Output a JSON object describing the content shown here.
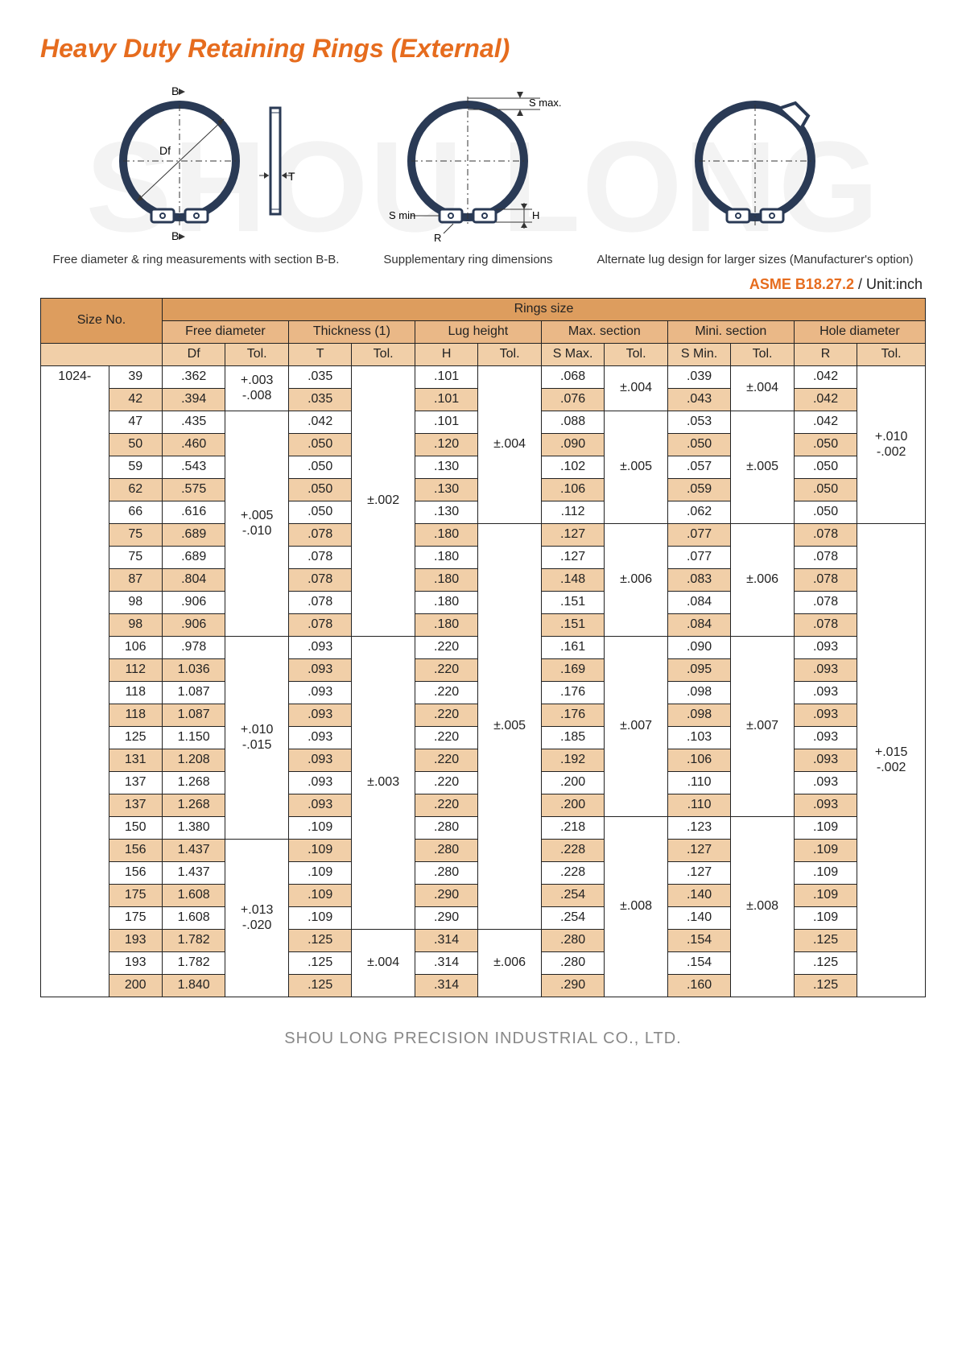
{
  "title": "Heavy Duty Retaining Rings\n(External)",
  "watermark": "SHOU LONG",
  "standard": "ASME B18.27.2",
  "unit_label": " / Unit:inch",
  "footer": "SHOU LONG PRECISION INDUSTRIAL CO., LTD.",
  "diagrams": [
    {
      "caption": "Free diameter & ring measurements\nwith section B-B.",
      "labels": [
        "B",
        "Df",
        "T",
        "B"
      ]
    },
    {
      "caption": "Supplementary\nring dimensions",
      "labels": [
        "S max.",
        "S min",
        "R",
        "H"
      ]
    },
    {
      "caption": "Alternate lug design\nfor larger sizes\n(Manufacturer's option)"
    }
  ],
  "table": {
    "header": {
      "size_no": "Size No.",
      "rings_size": "Rings size",
      "groups": [
        "Free diameter",
        "Thickness (1)",
        "Lug height",
        "Max. section",
        "Mini. section",
        "Hole diameter"
      ],
      "cols": [
        "Df",
        "Tol.",
        "T",
        "Tol.",
        "H",
        "Tol.",
        "S Max.",
        "Tol.",
        "S Min.",
        "Tol.",
        "R",
        "Tol."
      ]
    },
    "series_prefix": "1024-",
    "rows": [
      {
        "n": "39",
        "df": ".362",
        "t": ".035",
        "h": ".101",
        "smax": ".068",
        "smin": ".039",
        "r": ".042"
      },
      {
        "n": "42",
        "df": ".394",
        "t": ".035",
        "h": ".101",
        "smax": ".076",
        "smin": ".043",
        "r": ".042",
        "shade": true
      },
      {
        "n": "47",
        "df": ".435",
        "t": ".042",
        "h": ".101",
        "smax": ".088",
        "smin": ".053",
        "r": ".042"
      },
      {
        "n": "50",
        "df": ".460",
        "t": ".050",
        "h": ".120",
        "smax": ".090",
        "smin": ".050",
        "r": ".050",
        "shade": true
      },
      {
        "n": "59",
        "df": ".543",
        "t": ".050",
        "h": ".130",
        "smax": ".102",
        "smin": ".057",
        "r": ".050"
      },
      {
        "n": "62",
        "df": ".575",
        "t": ".050",
        "h": ".130",
        "smax": ".106",
        "smin": ".059",
        "r": ".050",
        "shade": true
      },
      {
        "n": "66",
        "df": ".616",
        "t": ".050",
        "h": ".130",
        "smax": ".112",
        "smin": ".062",
        "r": ".050"
      },
      {
        "n": "75",
        "df": ".689",
        "t": ".078",
        "h": ".180",
        "smax": ".127",
        "smin": ".077",
        "r": ".078",
        "shade": true
      },
      {
        "n": "75",
        "df": ".689",
        "t": ".078",
        "h": ".180",
        "smax": ".127",
        "smin": ".077",
        "r": ".078"
      },
      {
        "n": "87",
        "df": ".804",
        "t": ".078",
        "h": ".180",
        "smax": ".148",
        "smin": ".083",
        "r": ".078",
        "shade": true
      },
      {
        "n": "98",
        "df": ".906",
        "t": ".078",
        "h": ".180",
        "smax": ".151",
        "smin": ".084",
        "r": ".078"
      },
      {
        "n": "98",
        "df": ".906",
        "t": ".078",
        "h": ".180",
        "smax": ".151",
        "smin": ".084",
        "r": ".078",
        "shade": true
      },
      {
        "n": "106",
        "df": ".978",
        "t": ".093",
        "h": ".220",
        "smax": ".161",
        "smin": ".090",
        "r": ".093"
      },
      {
        "n": "112",
        "df": "1.036",
        "t": ".093",
        "h": ".220",
        "smax": ".169",
        "smin": ".095",
        "r": ".093",
        "shade": true
      },
      {
        "n": "118",
        "df": "1.087",
        "t": ".093",
        "h": ".220",
        "smax": ".176",
        "smin": ".098",
        "r": ".093"
      },
      {
        "n": "118",
        "df": "1.087",
        "t": ".093",
        "h": ".220",
        "smax": ".176",
        "smin": ".098",
        "r": ".093",
        "shade": true
      },
      {
        "n": "125",
        "df": "1.150",
        "t": ".093",
        "h": ".220",
        "smax": ".185",
        "smin": ".103",
        "r": ".093"
      },
      {
        "n": "131",
        "df": "1.208",
        "t": ".093",
        "h": ".220",
        "smax": ".192",
        "smin": ".106",
        "r": ".093",
        "shade": true
      },
      {
        "n": "137",
        "df": "1.268",
        "t": ".093",
        "h": ".220",
        "smax": ".200",
        "smin": ".110",
        "r": ".093"
      },
      {
        "n": "137",
        "df": "1.268",
        "t": ".093",
        "h": ".220",
        "smax": ".200",
        "smin": ".110",
        "r": ".093",
        "shade": true
      },
      {
        "n": "150",
        "df": "1.380",
        "t": ".109",
        "h": ".280",
        "smax": ".218",
        "smin": ".123",
        "r": ".109"
      },
      {
        "n": "156",
        "df": "1.437",
        "t": ".109",
        "h": ".280",
        "smax": ".228",
        "smin": ".127",
        "r": ".109",
        "shade": true
      },
      {
        "n": "156",
        "df": "1.437",
        "t": ".109",
        "h": ".280",
        "smax": ".228",
        "smin": ".127",
        "r": ".109"
      },
      {
        "n": "175",
        "df": "1.608",
        "t": ".109",
        "h": ".290",
        "smax": ".254",
        "smin": ".140",
        "r": ".109",
        "shade": true
      },
      {
        "n": "175",
        "df": "1.608",
        "t": ".109",
        "h": ".290",
        "smax": ".254",
        "smin": ".140",
        "r": ".109"
      },
      {
        "n": "193",
        "df": "1.782",
        "t": ".125",
        "h": ".314",
        "smax": ".280",
        "smin": ".154",
        "r": ".125",
        "shade": true
      },
      {
        "n": "193",
        "df": "1.782",
        "t": ".125",
        "h": ".314",
        "smax": ".280",
        "smin": ".154",
        "r": ".125"
      },
      {
        "n": "200",
        "df": "1.840",
        "t": ".125",
        "h": ".314",
        "smax": ".290",
        "smin": ".160",
        "r": ".125",
        "shade": true
      }
    ],
    "tol_spans": {
      "df": [
        {
          "start": 0,
          "len": 2,
          "text": "+.003\n-.008"
        },
        {
          "start": 2,
          "len": 10,
          "text": "+.005\n-.010"
        },
        {
          "start": 12,
          "len": 9,
          "text": "+.010\n-.015"
        },
        {
          "start": 21,
          "len": 7,
          "text": "+.013\n-.020"
        }
      ],
      "t": [
        {
          "start": 0,
          "len": 12,
          "text": "±.002"
        },
        {
          "start": 12,
          "len": 13,
          "text": "±.003"
        },
        {
          "start": 25,
          "len": 3,
          "text": "±.004"
        }
      ],
      "h": [
        {
          "start": 0,
          "len": 7,
          "text": "±.004"
        },
        {
          "start": 7,
          "len": 18,
          "text": "±.005"
        },
        {
          "start": 25,
          "len": 3,
          "text": "±.006"
        }
      ],
      "smax": [
        {
          "start": 0,
          "len": 2,
          "text": "±.004"
        },
        {
          "start": 2,
          "len": 5,
          "text": "±.005"
        },
        {
          "start": 7,
          "len": 5,
          "text": "±.006"
        },
        {
          "start": 12,
          "len": 8,
          "text": "±.007"
        },
        {
          "start": 20,
          "len": 8,
          "text": "±.008"
        }
      ],
      "smin": [
        {
          "start": 0,
          "len": 2,
          "text": "±.004"
        },
        {
          "start": 2,
          "len": 5,
          "text": "±.005"
        },
        {
          "start": 7,
          "len": 5,
          "text": "±.006"
        },
        {
          "start": 12,
          "len": 8,
          "text": "±.007"
        },
        {
          "start": 20,
          "len": 8,
          "text": "±.008"
        }
      ],
      "r": [
        {
          "start": 0,
          "len": 7,
          "text": "+.010\n-.002"
        },
        {
          "start": 7,
          "len": 21,
          "text": "+.015\n-.002"
        }
      ]
    }
  }
}
